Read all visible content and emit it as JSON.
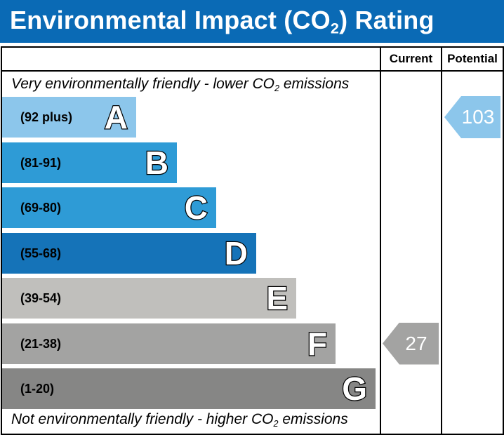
{
  "title": {
    "prefix": "Environmental Impact (CO",
    "sub": "2",
    "suffix": ") Rating"
  },
  "columns": {
    "current": "Current",
    "potential": "Potential"
  },
  "notes": {
    "top_prefix": "Very environmentally friendly - lower CO",
    "top_sub": "2",
    "top_suffix": " emissions",
    "bottom_prefix": "Not environmentally friendly - higher CO",
    "bottom_sub": "2",
    "bottom_suffix": " emissions"
  },
  "bands": [
    {
      "range": "(92 plus)",
      "letter": "A",
      "color": "#8cc6eb"
    },
    {
      "range": "(81-91)",
      "letter": "B",
      "color": "#2e9bd6"
    },
    {
      "range": "(69-80)",
      "letter": "C",
      "color": "#2e9bd6"
    },
    {
      "range": "(55-68)",
      "letter": "D",
      "color": "#1573b8"
    },
    {
      "range": "(39-54)",
      "letter": "E",
      "color": "#c0bfbc"
    },
    {
      "range": "(21-38)",
      "letter": "F",
      "color": "#a3a3a2"
    },
    {
      "range": "(1-20)",
      "letter": "G",
      "color": "#868685"
    }
  ],
  "ratings": {
    "current": {
      "value": "27",
      "band": "F",
      "color": "#a3a3a2"
    },
    "potential": {
      "value": "103",
      "band": "A",
      "color": "#8cc6eb"
    }
  }
}
